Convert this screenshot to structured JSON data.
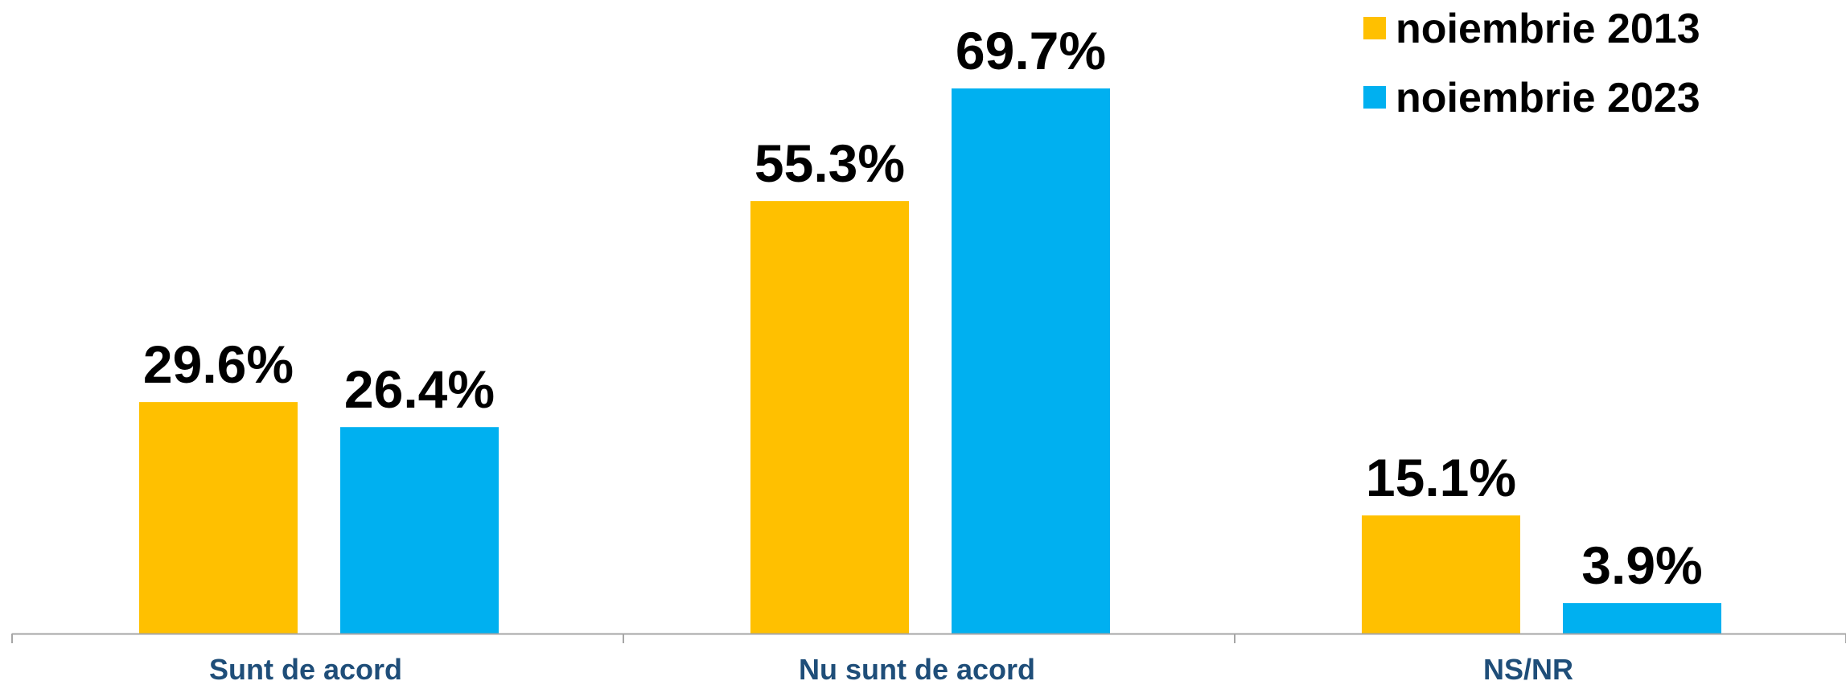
{
  "chart_data": {
    "type": "bar",
    "categories": [
      "Sunt de acord",
      "Nu sunt de acord",
      "NS/NR"
    ],
    "series": [
      {
        "name": "noiembrie 2013",
        "values": [
          29.6,
          55.3,
          15.1
        ],
        "labels": [
          "29.6%",
          "55.3%",
          "15.1%"
        ],
        "color": "#FFC000"
      },
      {
        "name": "noiembrie 2023",
        "values": [
          26.4,
          69.7,
          3.9
        ],
        "labels": [
          "26.4%",
          "69.7%",
          "3.9%"
        ],
        "color": "#00B0F0"
      }
    ],
    "ylim": [
      0,
      75
    ],
    "grid": false,
    "legend": "top-right",
    "axis_color": "#A6A6A6",
    "category_label_color": "#1F4E79"
  }
}
